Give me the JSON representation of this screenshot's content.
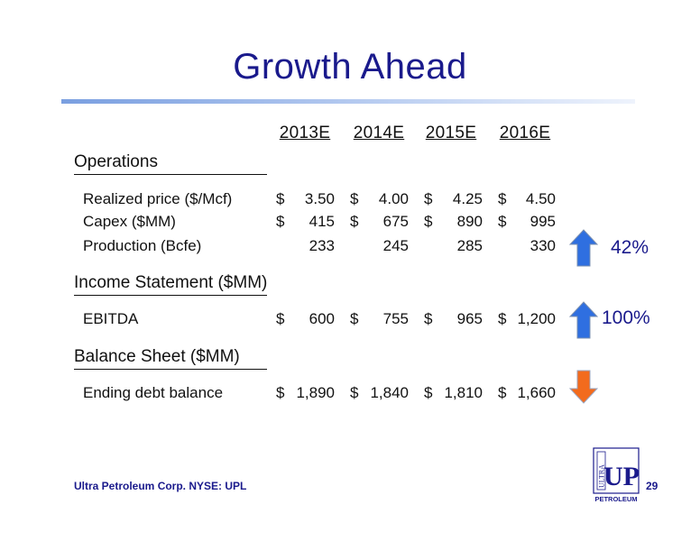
{
  "title": "Growth Ahead",
  "years": [
    "2013E",
    "2014E",
    "2015E",
    "2016E"
  ],
  "sections": {
    "operations": "Operations",
    "income": "Income Statement ($MM)",
    "balance": "Balance Sheet ($MM)"
  },
  "currency_symbol": "$",
  "rows": {
    "price": {
      "label": "Realized price ($/Mcf)",
      "values": [
        "3.50",
        "4.00",
        "4.25",
        "4.50"
      ]
    },
    "capex": {
      "label": "Capex ($MM)",
      "values": [
        "415",
        "675",
        "890",
        "995"
      ]
    },
    "production": {
      "label": "Production (Bcfe)",
      "values": [
        "233",
        "245",
        "285",
        "330"
      ]
    },
    "ebitda": {
      "label": "EBITDA",
      "values": [
        "600",
        "755",
        "965",
        "1,200"
      ]
    },
    "debt": {
      "label": "Ending debt balance",
      "values": [
        "1,890",
        "1,840",
        "1,810",
        "1,660"
      ]
    }
  },
  "indicators": {
    "production_pct": "42%",
    "ebitda_pct": "100%"
  },
  "colors": {
    "title": "#1a1a8c",
    "up_arrow": "#2f6fe0",
    "down_arrow": "#f26b1d"
  },
  "footer": {
    "company": "Ultra Petroleum Corp. NYSE: UPL",
    "page": "29"
  },
  "logo": {
    "ultra": "ULTRA",
    "up": "UP",
    "petroleum": "PETROLEUM"
  }
}
